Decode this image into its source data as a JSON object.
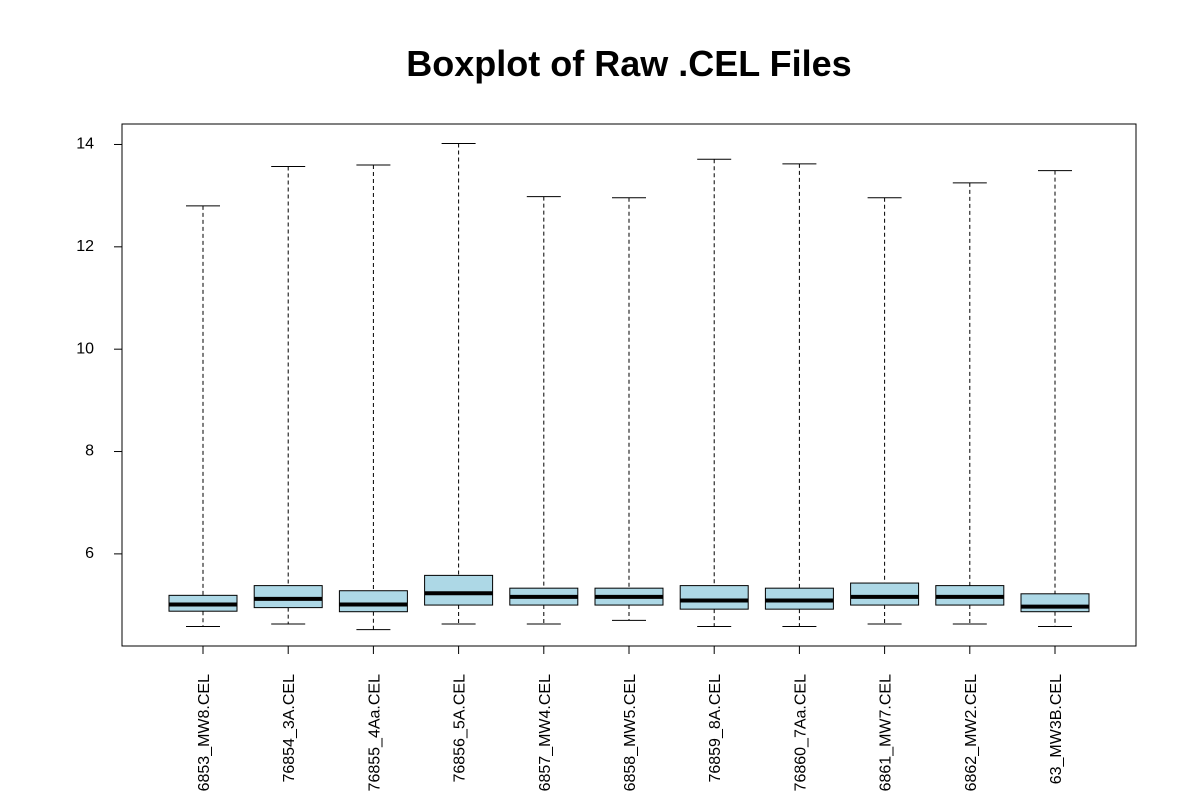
{
  "chart_data": {
    "type": "boxplot",
    "title": "Boxplot of Raw .CEL Files",
    "xlabel": "",
    "ylabel": "",
    "ylim": [
      4.2,
      14.4
    ],
    "yticks": [
      6,
      8,
      10,
      12,
      14
    ],
    "box_color": "#add8e6",
    "categories": [
      "6853_MW8.CEL",
      "76854_3A.CEL",
      "76855_4Aa.CEL",
      "76856_5A.CEL",
      "6857_MW4.CEL",
      "6858_MW5.CEL",
      "76859_8A.CEL",
      "76860_7Aa.CEL",
      "6861_MW7.CEL",
      "6862_MW2.CEL",
      "63_MW3B.CEL"
    ],
    "series": [
      {
        "min": 4.58,
        "q1": 4.88,
        "median": 5.01,
        "q3": 5.19,
        "max": 12.8
      },
      {
        "min": 4.63,
        "q1": 4.95,
        "median": 5.12,
        "q3": 5.38,
        "max": 13.57
      },
      {
        "min": 4.52,
        "q1": 4.87,
        "median": 5.01,
        "q3": 5.28,
        "max": 13.6
      },
      {
        "min": 4.63,
        "q1": 5.0,
        "median": 5.23,
        "q3": 5.58,
        "max": 14.02
      },
      {
        "min": 4.63,
        "q1": 5.0,
        "median": 5.16,
        "q3": 5.33,
        "max": 12.98
      },
      {
        "min": 4.7,
        "q1": 5.0,
        "median": 5.16,
        "q3": 5.33,
        "max": 12.96
      },
      {
        "min": 4.58,
        "q1": 4.92,
        "median": 5.09,
        "q3": 5.38,
        "max": 13.71
      },
      {
        "min": 4.58,
        "q1": 4.92,
        "median": 5.09,
        "q3": 5.33,
        "max": 13.62
      },
      {
        "min": 4.63,
        "q1": 5.0,
        "median": 5.16,
        "q3": 5.43,
        "max": 12.96
      },
      {
        "min": 4.63,
        "q1": 5.0,
        "median": 5.16,
        "q3": 5.38,
        "max": 13.25
      },
      {
        "min": 4.58,
        "q1": 4.87,
        "median": 4.97,
        "q3": 5.22,
        "max": 13.49
      }
    ]
  }
}
